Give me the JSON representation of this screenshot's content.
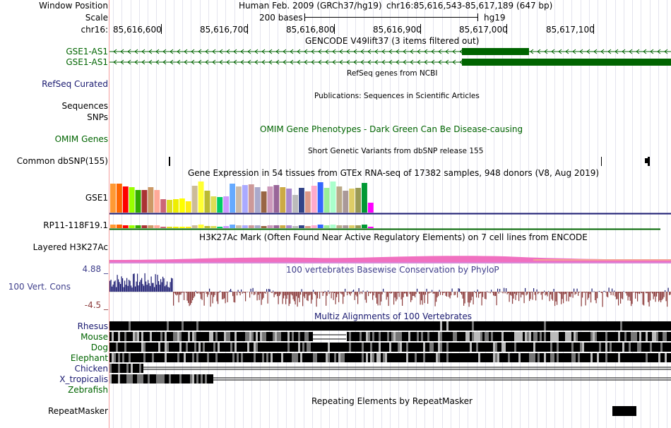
{
  "header": {
    "window_position_label": "Window Position",
    "scale_label": "Scale",
    "chrom_label": "chr16:",
    "assembly": "Human Feb. 2009 (GRCh37/hg19)",
    "position": "chr16:85,616,543-85,617,189 (647 bp)",
    "scale_text": "200 bases",
    "scale_db": "hg19",
    "ticks": [
      "85,616,600",
      "85,616,700",
      "85,616,800",
      "85,616,900",
      "85,617,000",
      "85,617,100"
    ]
  },
  "tracks": {
    "gencode": {
      "title": "GENCODE V49lift37 (3 items filtered out)",
      "items": [
        "GSE1-AS1",
        "GSE1-AS1"
      ]
    },
    "refseq": {
      "title": "RefSeq genes from NCBI",
      "label": "RefSeq Curated"
    },
    "publications": {
      "title": "Publications: Sequences in Scientific Articles",
      "label_sequences": "Sequences",
      "label_snps": "SNPs"
    },
    "omim": {
      "title": "OMIM Gene Phenotypes - Dark Green Can Be Disease-causing",
      "label": "OMIM Genes"
    },
    "dbsnp": {
      "title": "Short Genetic Variants from dbSNP release 155",
      "label": "Common dbSNP(155)"
    },
    "gtex": {
      "title": "Gene Expression in 54 tissues from GTEx RNA-seq of 17382 samples, 948 donors (V8, Aug 2019)",
      "genes": [
        "GSE1",
        "RP11-118F19.1"
      ]
    },
    "h3k27ac": {
      "title": "H3K27Ac Mark (Often Found Near Active Regulatory Elements) on 7 cell lines from ENCODE",
      "label": "Layered H3K27Ac"
    },
    "conservation": {
      "title": "100 vertebrates Basewise Conservation by PhyloP",
      "label": "100 Vert. Cons",
      "max": "4.88 _",
      "min": "-4.5 _"
    },
    "multiz": {
      "title": "Multiz Alignments of 100 Vertebrates",
      "species": [
        "Rhesus",
        "Mouse",
        "Dog",
        "Elephant",
        "Chicken",
        "X_tropicalis",
        "Zebrafish"
      ]
    },
    "repeatmasker": {
      "title": "Repeating Elements by RepeatMasker",
      "label": "RepeatMasker"
    }
  },
  "colors": {
    "gencode": "#006400",
    "gene_label_green": "#006400",
    "refseq_label": "#191970",
    "phylop_pos": "#191970",
    "phylop_neg": "#8b3a3a",
    "h3k27ac": "#f070c0"
  },
  "gtex_tissue_colors": [
    "#ff9933",
    "#ff6600",
    "#ff0000",
    "#99ff00",
    "#33aa00",
    "#aa3333",
    "#cc9966",
    "#ffaa99",
    "#cc6677",
    "#dddd22",
    "#eeee00",
    "#ffff00",
    "#ffee11",
    "#ccbb99",
    "#ffff33",
    "#bbbb33",
    "#dddd55",
    "#00cc66",
    "#cc99ff",
    "#66aaff",
    "#ccbbaa",
    "#aaaaff",
    "#cc9999",
    "#aaaacc",
    "#996644",
    "#cc99bb",
    "#996699",
    "#ccaa44",
    "#aa88cc",
    "#bbbbbb",
    "#334488",
    "#dd9988",
    "#ffaacc",
    "#3366ff",
    "#99ee99",
    "#aaffcc",
    "#bbaa88",
    "#aa9999",
    "#ddcc66",
    "#999955",
    "#009933",
    "#ff00ff"
  ],
  "gtex_values": [
    0.92,
    0.92,
    0.83,
    0.8,
    0.72,
    0.71,
    0.8,
    0.72,
    0.42,
    0.4,
    0.42,
    0.45,
    0.36,
    0.85,
    0.97,
    0.68,
    0.52,
    0.49,
    0.5,
    0.9,
    0.83,
    0.86,
    0.88,
    0.8,
    0.66,
    0.83,
    0.86,
    0.8,
    0.75,
    0.55,
    0.78,
    0.66,
    0.85,
    0.95,
    0.78,
    0.97,
    0.82,
    0.7,
    0.76,
    0.78,
    0.94,
    0.3
  ]
}
